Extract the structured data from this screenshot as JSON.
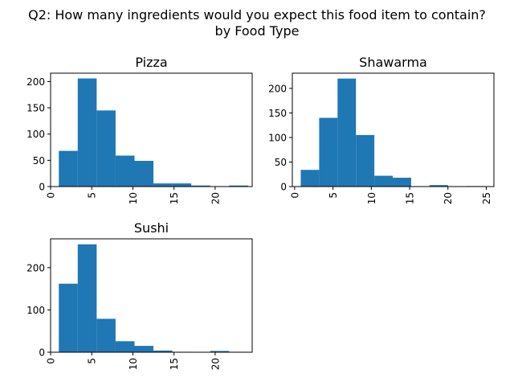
{
  "figure": {
    "title_line1": "Q2: How many ingredients would you expect this food item to contain?",
    "title_line2": "by Food Type"
  },
  "colors": {
    "bar": "#1f77b4",
    "axis": "#000000",
    "background": "#ffffff"
  },
  "chart_data": [
    {
      "type": "bar",
      "title": "Pizza",
      "xlabel": "",
      "ylabel": "",
      "bins": [
        [
          1.0,
          3.3
        ],
        [
          3.3,
          5.6
        ],
        [
          5.6,
          7.9
        ],
        [
          7.9,
          10.2
        ],
        [
          10.2,
          12.5
        ],
        [
          12.5,
          14.8
        ],
        [
          14.8,
          17.1
        ],
        [
          17.1,
          19.4
        ],
        [
          19.4,
          21.7
        ],
        [
          21.7,
          24.0
        ]
      ],
      "values": [
        68,
        206,
        145,
        59,
        49,
        6,
        6,
        2,
        0,
        2
      ],
      "xlim": [
        0,
        24.5
      ],
      "ylim": [
        0,
        216
      ],
      "xticks": [
        0,
        5,
        10,
        15,
        20
      ],
      "yticks": [
        0,
        50,
        100,
        150,
        200
      ],
      "grid": false
    },
    {
      "type": "bar",
      "title": "Shawarma",
      "xlabel": "",
      "ylabel": "",
      "bins": [
        [
          0.8,
          3.2
        ],
        [
          3.2,
          5.6
        ],
        [
          5.6,
          8.0
        ],
        [
          8.0,
          10.4
        ],
        [
          10.4,
          12.8
        ],
        [
          12.8,
          15.2
        ],
        [
          15.2,
          17.6
        ],
        [
          17.6,
          20.0
        ],
        [
          20.0,
          22.4
        ],
        [
          22.4,
          24.8
        ]
      ],
      "values": [
        34,
        140,
        220,
        105,
        22,
        18,
        0,
        3,
        0,
        1
      ],
      "xlim": [
        -0.3,
        26
      ],
      "ylim": [
        0,
        231
      ],
      "xticks": [
        0,
        5,
        10,
        15,
        20,
        25
      ],
      "yticks": [
        0,
        50,
        100,
        150,
        200
      ],
      "grid": false
    },
    {
      "type": "bar",
      "title": "Sushi",
      "xlabel": "",
      "ylabel": "",
      "bins": [
        [
          1.0,
          3.3
        ],
        [
          3.3,
          5.6
        ],
        [
          5.6,
          7.9
        ],
        [
          7.9,
          10.2
        ],
        [
          10.2,
          12.5
        ],
        [
          12.5,
          14.8
        ],
        [
          14.8,
          17.1
        ],
        [
          17.1,
          19.4
        ],
        [
          19.4,
          21.7
        ],
        [
          21.7,
          24.0
        ]
      ],
      "values": [
        162,
        255,
        79,
        26,
        15,
        4,
        1,
        0,
        3,
        1
      ],
      "xlim": [
        0,
        24.5
      ],
      "ylim": [
        0,
        268
      ],
      "xticks": [
        0,
        5,
        10,
        15,
        20
      ],
      "yticks": [
        0,
        100,
        200
      ],
      "grid": false
    }
  ]
}
